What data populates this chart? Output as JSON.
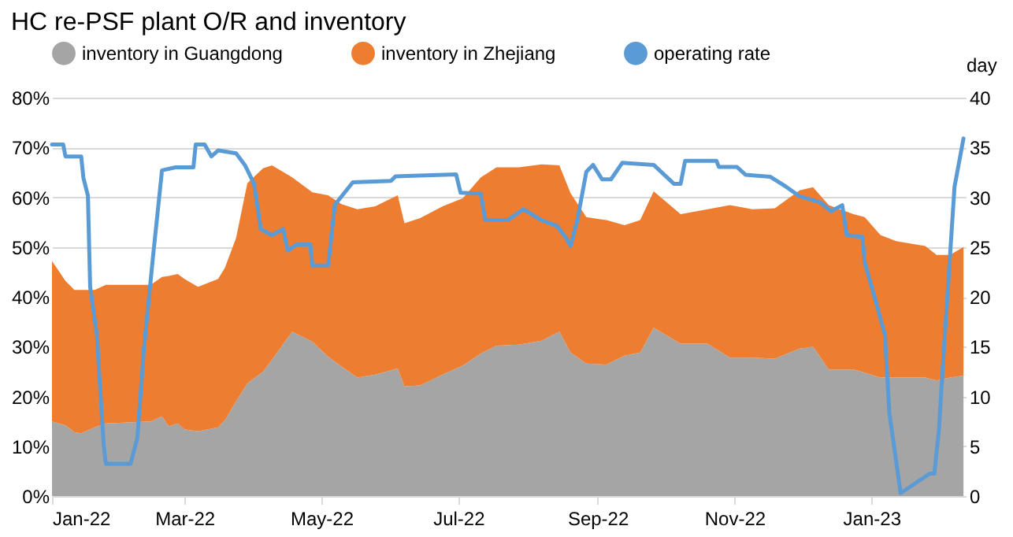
{
  "chart_data": {
    "type": "area",
    "title": "HC re-PSF plant O/R and inventory",
    "y2label": "day",
    "stacked": true,
    "legend": "top",
    "grid": "y",
    "x": [
      "2022-01-01",
      "2022-01-07",
      "2022-01-11",
      "2022-01-14",
      "2022-01-20",
      "2022-01-25",
      "2022-02-04",
      "2022-02-14",
      "2022-02-19",
      "2022-02-22",
      "2022-02-26",
      "2022-03-01",
      "2022-03-07",
      "2022-03-16",
      "2022-03-19",
      "2022-03-24",
      "2022-03-29",
      "2022-04-05",
      "2022-04-09",
      "2022-04-18",
      "2022-04-27",
      "2022-05-04",
      "2022-05-10",
      "2022-05-17",
      "2022-05-25",
      "2022-06-04",
      "2022-06-07",
      "2022-06-14",
      "2022-06-24",
      "2022-07-03",
      "2022-07-11",
      "2022-07-18",
      "2022-07-28",
      "2022-08-07",
      "2022-08-15",
      "2022-08-20",
      "2022-08-27",
      "2022-09-05",
      "2022-09-13",
      "2022-09-20",
      "2022-09-26",
      "2022-10-08",
      "2022-10-20",
      "2022-10-30",
      "2022-11-09",
      "2022-11-19",
      "2022-11-30",
      "2022-12-06",
      "2022-12-13",
      "2022-12-24",
      "2022-12-29",
      "2023-01-05",
      "2023-01-12",
      "2023-01-25",
      "2023-01-30",
      "2023-02-05",
      "2023-02-11"
    ],
    "series": [
      {
        "name": "inventory in Guangdong",
        "type": "area",
        "axis": "y2",
        "color": "#a5a5a5",
        "values": [
          7.5,
          7.1,
          6.4,
          6.3,
          6.9,
          7.3,
          7.4,
          7.5,
          8.0,
          7.0,
          7.3,
          6.7,
          6.5,
          6.9,
          7.6,
          9.5,
          11.3,
          12.5,
          13.7,
          16.5,
          15.5,
          14.0,
          13.0,
          11.9,
          12.2,
          12.8,
          11.0,
          11.1,
          12.2,
          13.1,
          14.3,
          15.1,
          15.2,
          15.6,
          16.5,
          14.4,
          13.3,
          13.2,
          14.1,
          14.4,
          16.9,
          15.3,
          15.3,
          13.9,
          13.9,
          13.8,
          14.8,
          15.0,
          12.7,
          12.7,
          12.4,
          11.9,
          11.9,
          11.9,
          11.6,
          11.9,
          12.1
        ]
      },
      {
        "name": "inventory in Zhejiang",
        "type": "area",
        "axis": "y2",
        "color": "#ed7d31",
        "values": [
          16.1,
          14.5,
          14.3,
          14.4,
          13.8,
          13.9,
          13.8,
          13.7,
          14.0,
          15.1,
          15.0,
          15.1,
          14.5,
          14.9,
          15.3,
          16.4,
          20.1,
          20.4,
          19.5,
          15.5,
          15.0,
          16.2,
          16.3,
          16.9,
          16.9,
          17.4,
          16.4,
          16.8,
          16.9,
          16.8,
          17.7,
          17.9,
          17.8,
          17.7,
          16.7,
          16.0,
          14.7,
          14.5,
          13.1,
          13.3,
          13.7,
          13.0,
          13.5,
          15.3,
          14.9,
          15.1,
          15.9,
          16.0,
          16.5,
          15.6,
          15.6,
          14.3,
          13.7,
          13.2,
          12.6,
          12.3,
          12.9
        ]
      },
      {
        "name": "operating rate",
        "type": "line",
        "axis": "y",
        "color": "#5b9bd5",
        "x": [
          "2022-01-01",
          "2022-01-06",
          "2022-01-07",
          "2022-01-14",
          "2022-01-15",
          "2022-01-17",
          "2022-01-18",
          "2022-01-21",
          "2022-01-24",
          "2022-01-25",
          "2022-02-05",
          "2022-02-08",
          "2022-02-11",
          "2022-02-15",
          "2022-02-19",
          "2022-02-25",
          "2022-03-05",
          "2022-03-06",
          "2022-03-10",
          "2022-03-13",
          "2022-03-16",
          "2022-03-24",
          "2022-03-28",
          "2022-04-01",
          "2022-04-04",
          "2022-04-09",
          "2022-04-14",
          "2022-04-16",
          "2022-04-20",
          "2022-04-26",
          "2022-04-27",
          "2022-05-04",
          "2022-05-07",
          "2022-05-15",
          "2022-06-01",
          "2022-06-03",
          "2022-06-30",
          "2022-07-02",
          "2022-07-11",
          "2022-07-13",
          "2022-07-23",
          "2022-07-30",
          "2022-08-07",
          "2022-08-14",
          "2022-08-18",
          "2022-08-20",
          "2022-08-23",
          "2022-08-27",
          "2022-08-30",
          "2022-09-03",
          "2022-09-07",
          "2022-09-12",
          "2022-09-26",
          "2022-10-05",
          "2022-10-08",
          "2022-10-10",
          "2022-10-24",
          "2022-10-25",
          "2022-11-02",
          "2022-11-06",
          "2022-11-17",
          "2022-11-24",
          "2022-11-30",
          "2022-12-09",
          "2022-12-14",
          "2022-12-19",
          "2022-12-21",
          "2022-12-28",
          "2022-12-29",
          "2023-01-03",
          "2023-01-07",
          "2023-01-09",
          "2023-01-14",
          "2023-01-27",
          "2023-01-29",
          "2023-01-31",
          "2023-02-02",
          "2023-02-07",
          "2023-02-11"
        ],
        "values": [
          70.6,
          70.6,
          68.2,
          68.2,
          63.9,
          60.3,
          42.0,
          32.3,
          10.4,
          6.5,
          6.5,
          11.6,
          29.8,
          48.1,
          65.4,
          66.0,
          66.0,
          70.6,
          70.6,
          68.2,
          69.4,
          68.8,
          66.4,
          62.7,
          53.6,
          52.4,
          53.6,
          49.3,
          50.5,
          50.5,
          46.3,
          46.3,
          58.5,
          63.0,
          63.3,
          64.2,
          64.6,
          60.9,
          60.7,
          55.4,
          55.4,
          57.6,
          55.4,
          54.2,
          51.8,
          50.2,
          55.4,
          65.1,
          66.5,
          63.6,
          63.6,
          66.9,
          66.5,
          62.7,
          62.7,
          67.3,
          67.3,
          66.1,
          66.1,
          64.5,
          64.1,
          62.1,
          60.2,
          59.0,
          57.2,
          58.4,
          52.4,
          52.0,
          46.9,
          39.0,
          32.4,
          16.6,
          0.6,
          4.5,
          4.5,
          13.0,
          27.5,
          62.1,
          71.8
        ]
      }
    ],
    "xlim": [
      "2022-01-01",
      "2023-02-12"
    ],
    "xticks": [
      {
        "value": "2022-01-01",
        "label": "Jan-22"
      },
      {
        "value": "2022-03-01",
        "label": "Mar-22"
      },
      {
        "value": "2022-05-01",
        "label": "May-22"
      },
      {
        "value": "2022-07-01",
        "label": "Jul-22"
      },
      {
        "value": "2022-09-01",
        "label": "Sep-22"
      },
      {
        "value": "2022-11-01",
        "label": "Nov-22"
      },
      {
        "value": "2023-01-01",
        "label": "Jan-23"
      }
    ],
    "ylim": [
      0,
      80
    ],
    "yticks": [
      {
        "value": 0,
        "label": "0%"
      },
      {
        "value": 10,
        "label": "10%"
      },
      {
        "value": 20,
        "label": "20%"
      },
      {
        "value": 30,
        "label": "30%"
      },
      {
        "value": 40,
        "label": "40%"
      },
      {
        "value": 50,
        "label": "50%"
      },
      {
        "value": 60,
        "label": "60%"
      },
      {
        "value": 70,
        "label": "70%"
      },
      {
        "value": 80,
        "label": "80%"
      }
    ],
    "y2lim": [
      0,
      40
    ],
    "y2ticks": [
      0,
      5,
      10,
      15,
      20,
      25,
      30,
      35,
      40
    ]
  }
}
